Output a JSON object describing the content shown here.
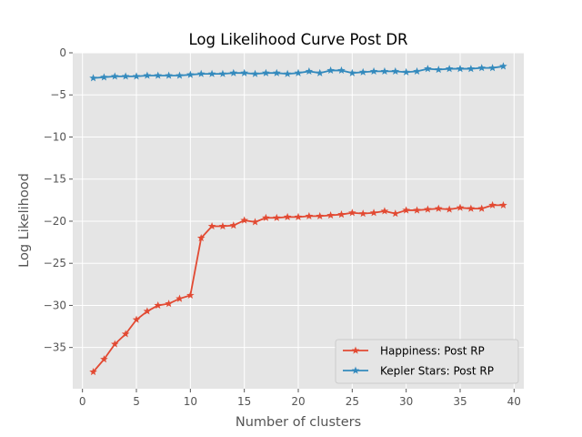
{
  "chart_data": {
    "type": "line",
    "title": "Log Likelihood Curve Post DR",
    "xlabel": "Number of clusters",
    "ylabel": "Log Likelihood",
    "xlim": [
      -0.9,
      40.9
    ],
    "ylim": [
      -39.9,
      0
    ],
    "xticks": [
      0,
      5,
      10,
      15,
      20,
      25,
      30,
      35,
      40
    ],
    "yticks": [
      0,
      -5,
      -10,
      -15,
      -20,
      -25,
      -30,
      -35
    ],
    "grid": true,
    "legend_position": "lower-right",
    "x": [
      1,
      2,
      3,
      4,
      5,
      6,
      7,
      8,
      9,
      10,
      11,
      12,
      13,
      14,
      15,
      16,
      17,
      18,
      19,
      20,
      21,
      22,
      23,
      24,
      25,
      26,
      27,
      28,
      29,
      30,
      31,
      32,
      33,
      34,
      35,
      36,
      37,
      38,
      39
    ],
    "series": [
      {
        "name": "Happiness: Post RP",
        "color": "#E24A33",
        "marker": "star",
        "values": [
          -37.9,
          -36.4,
          -34.6,
          -33.4,
          -31.7,
          -30.7,
          -30.0,
          -29.8,
          -29.2,
          -28.8,
          -22.0,
          -20.6,
          -20.6,
          -20.5,
          -19.9,
          -20.1,
          -19.6,
          -19.6,
          -19.5,
          -19.5,
          -19.4,
          -19.4,
          -19.3,
          -19.2,
          -19.0,
          -19.1,
          -19.0,
          -18.8,
          -19.1,
          -18.7,
          -18.7,
          -18.6,
          -18.5,
          -18.6,
          -18.4,
          -18.5,
          -18.5,
          -18.1,
          -18.1
        ]
      },
      {
        "name": "Kepler Stars: Post RP",
        "color": "#348ABD",
        "marker": "star",
        "values": [
          -3.0,
          -2.9,
          -2.8,
          -2.8,
          -2.8,
          -2.7,
          -2.7,
          -2.7,
          -2.7,
          -2.6,
          -2.5,
          -2.5,
          -2.5,
          -2.4,
          -2.4,
          -2.5,
          -2.4,
          -2.4,
          -2.5,
          -2.4,
          -2.2,
          -2.4,
          -2.1,
          -2.1,
          -2.4,
          -2.3,
          -2.2,
          -2.2,
          -2.2,
          -2.3,
          -2.2,
          -1.9,
          -2.0,
          -1.9,
          -1.9,
          -1.9,
          -1.8,
          -1.8,
          -1.6
        ]
      }
    ]
  }
}
